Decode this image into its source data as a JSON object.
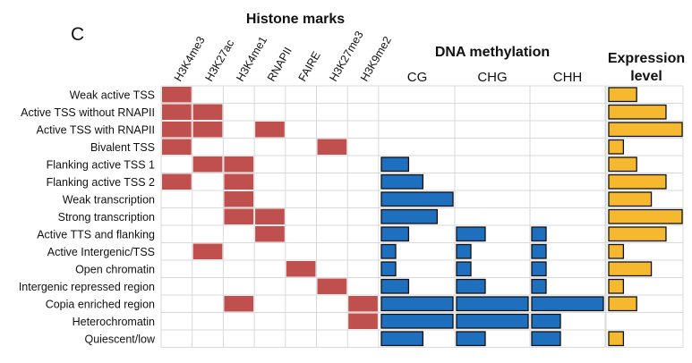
{
  "panel_label": "C",
  "colors": {
    "histone": "#c0504d",
    "methylation": "#1f6fbf",
    "expression": "#f5b82e",
    "grid": "#d9d9d9",
    "bar_edge": "#111111"
  },
  "chart_data": {
    "type": "heatmap",
    "rows": [
      "Weak active TSS",
      "Active TSS without RNAPII",
      "Active TSS with RNAPII",
      "Bivalent TSS",
      "Flanking active TSS 1",
      "Flanking active TSS 2",
      "Weak transcription",
      "Strong transcription",
      "Active TTS and flanking",
      "Active Intergenic/TSS",
      "Open chromatin",
      "Intergenic repressed region",
      "Copia enriched region",
      "Heterochromatin",
      "Quiescent/low"
    ],
    "histone": {
      "title": "Histone marks",
      "marks": [
        "H3K4me3",
        "H3K27ac",
        "H3K4me1",
        "RNAPII",
        "FAIRE",
        "H3K27me3",
        "H3K9me2"
      ],
      "presence": [
        [
          1,
          0,
          0,
          0,
          0,
          0,
          0
        ],
        [
          1,
          1,
          0,
          0,
          0,
          0,
          0
        ],
        [
          1,
          1,
          0,
          1,
          0,
          0,
          0
        ],
        [
          1,
          0,
          0,
          0,
          0,
          1,
          0
        ],
        [
          0,
          1,
          1,
          0,
          0,
          0,
          0
        ],
        [
          1,
          0,
          1,
          0,
          0,
          0,
          0
        ],
        [
          0,
          0,
          1,
          0,
          0,
          0,
          0
        ],
        [
          0,
          0,
          1,
          1,
          0,
          0,
          0
        ],
        [
          0,
          0,
          0,
          1,
          0,
          0,
          0
        ],
        [
          0,
          1,
          0,
          0,
          0,
          0,
          0
        ],
        [
          0,
          0,
          0,
          0,
          1,
          0,
          0
        ],
        [
          0,
          0,
          0,
          0,
          0,
          1,
          0
        ],
        [
          0,
          0,
          1,
          0,
          0,
          0,
          1
        ],
        [
          0,
          0,
          0,
          0,
          0,
          0,
          1
        ],
        [
          0,
          0,
          0,
          0,
          0,
          0,
          0
        ]
      ]
    },
    "methylation": {
      "title": "DNA methylation",
      "contexts": [
        "CG",
        "CHG",
        "CHH"
      ],
      "values": {
        "CG": [
          0,
          0,
          0,
          0,
          0.38,
          0.58,
          1.0,
          0.78,
          0.38,
          0.2,
          0.2,
          0.38,
          1.0,
          1.0,
          0.58
        ],
        "CHG": [
          0,
          0,
          0,
          0,
          0,
          0,
          0,
          0,
          0.4,
          0.2,
          0.2,
          0.4,
          1.0,
          1.0,
          0.4
        ],
        "CHH": [
          0,
          0,
          0,
          0,
          0,
          0,
          0,
          0,
          0.2,
          0.2,
          0.2,
          0.2,
          1.0,
          0.4,
          0.4
        ]
      }
    },
    "expression": {
      "title": "Expression level",
      "values": [
        0.38,
        0.78,
        1.0,
        0.2,
        0.38,
        0.78,
        0.58,
        1.0,
        0.78,
        0.2,
        0.58,
        0.2,
        0.38,
        0,
        0.2
      ]
    }
  }
}
